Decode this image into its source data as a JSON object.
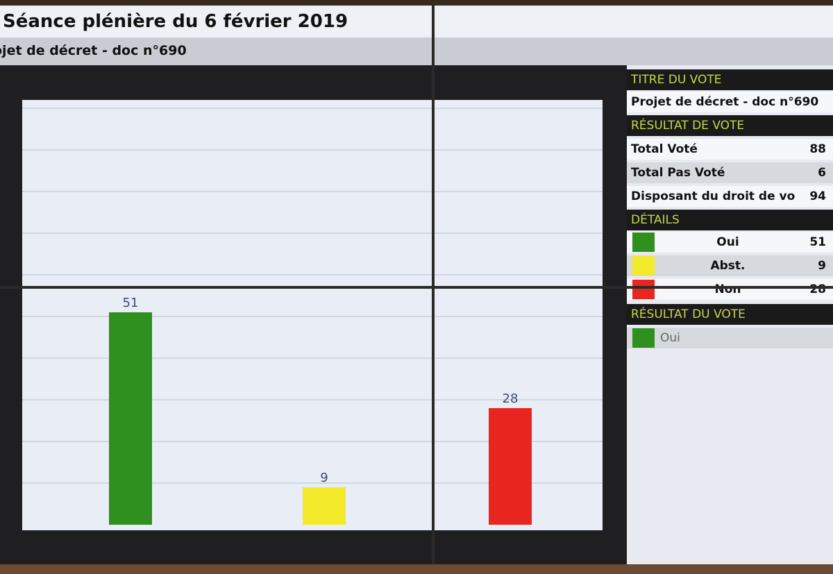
{
  "header": {
    "title": "Séance plénière du 6 février 2019",
    "subtitle": "ojet de décret - doc n°690"
  },
  "panel": {
    "titre_head": "TITRE DU VOTE",
    "titre_value": "Projet de décret - doc n°690",
    "resultat_head": "RÉSULTAT DE VOTE",
    "totals": [
      {
        "label": "Total Voté",
        "value": "88"
      },
      {
        "label": "Total Pas Voté",
        "value": "6"
      },
      {
        "label": "Disposant du droit de vo",
        "value": "94"
      }
    ],
    "details_head": "DÉTAILS",
    "details": [
      {
        "label": "Oui",
        "value": "51",
        "color": "#2f8f1f"
      },
      {
        "label": "Abst.",
        "value": "9",
        "color": "#f2ea2a"
      },
      {
        "label": "Non",
        "value": "28",
        "color": "#e8261f"
      }
    ],
    "resultat_du_vote_head": "RÉSULTAT DU VOTE",
    "resultat_du_vote_value": "Oui",
    "resultat_du_vote_color": "#2f8f1f"
  },
  "chart_data": {
    "type": "bar",
    "categories": [
      "Oui",
      "Abst.",
      "Non"
    ],
    "values": [
      51,
      9,
      28
    ],
    "colors": [
      "#2f8f1f",
      "#f2ea2a",
      "#e8261f"
    ],
    "ylim": [
      0,
      100
    ],
    "grid": true,
    "title": "",
    "xlabel": "",
    "ylabel": ""
  }
}
